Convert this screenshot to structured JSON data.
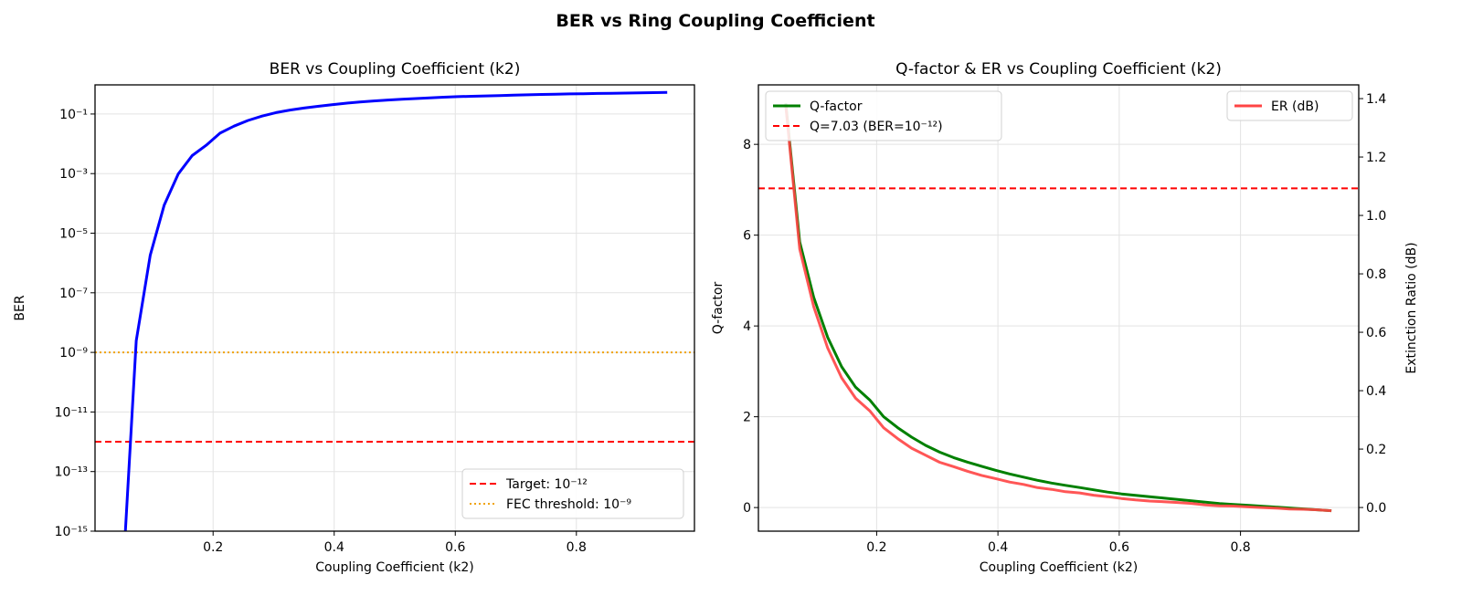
{
  "figure_title": "BER vs Ring Coupling Coefficient",
  "chart_data": [
    {
      "type": "line",
      "title": "BER vs Coupling Coefficient (k2)",
      "xlabel": "Coupling Coefficient (k2)",
      "ylabel": "BER",
      "yscale": "log",
      "xlim": [
        0.005,
        0.995
      ],
      "ylim": [
        1e-15,
        0.95
      ],
      "xticks": [
        0.2,
        0.4,
        0.6,
        0.8
      ],
      "xtick_labels": [
        "0.2",
        "0.4",
        "0.6",
        "0.8"
      ],
      "yticks": [
        0.1,
        0.001,
        1e-05,
        1e-07,
        1e-09,
        1e-11,
        1e-13,
        1e-15
      ],
      "ytick_labels": [
        "10⁻¹",
        "10⁻³",
        "10⁻⁵",
        "10⁻⁷",
        "10⁻⁹",
        "10⁻¹¹",
        "10⁻¹³",
        "10⁻¹⁵"
      ],
      "grid": true,
      "legend_position": "lower-right",
      "x": [
        0.05,
        0.0731,
        0.0962,
        0.1192,
        0.1423,
        0.1654,
        0.1885,
        0.2115,
        0.2346,
        0.2577,
        0.2808,
        0.3038,
        0.3269,
        0.35,
        0.3731,
        0.3962,
        0.4192,
        0.4423,
        0.4654,
        0.4885,
        0.5115,
        0.5346,
        0.5577,
        0.5808,
        0.6038,
        0.6269,
        0.65,
        0.6731,
        0.6962,
        0.7192,
        0.7423,
        0.7654,
        0.7885,
        0.8115,
        0.8346,
        0.8577,
        0.8808,
        0.9038,
        0.9269,
        0.95
      ],
      "series": [
        {
          "values": [
            2.8e-19,
            2.45e-09,
            1.82e-06,
            8.8e-05,
            0.000968,
            0.00402,
            0.0089,
            0.02275,
            0.0392,
            0.0606,
            0.0853,
            0.1112,
            0.1357,
            0.1587,
            0.1814,
            0.2061,
            0.2296,
            0.2514,
            0.2743,
            0.2946,
            0.3121,
            0.33,
            0.3483,
            0.3669,
            0.3821,
            0.3936,
            0.4052,
            0.4168,
            0.4286,
            0.4404,
            0.4522,
            0.4641,
            0.4721,
            0.4801,
            0.488,
            0.496,
            0.504,
            0.512,
            0.5199,
            0.5279
          ],
          "color": "#0000ff"
        }
      ],
      "reference_lines": [
        {
          "name": "Target: 10⁻¹²",
          "y": 1e-12,
          "color": "#ff0000",
          "style": "dashed"
        },
        {
          "name": "FEC threshold: 10⁻⁹",
          "y": 1e-09,
          "color": "#f0a30a",
          "style": "dotted"
        }
      ]
    },
    {
      "type": "line",
      "title": "Q-factor & ER vs Coupling Coefficient (k2)",
      "xlabel": "Coupling Coefficient (k2)",
      "ylabel": "Q-factor",
      "ylabel_color": "#008000",
      "ylabel_right": "Extinction Ratio (dB)",
      "ylabel_right_color": "#ff0000",
      "xlim": [
        0.005,
        0.995
      ],
      "ylim": [
        -0.52,
        9.31
      ],
      "ylim_right": [
        -0.081,
        1.447
      ],
      "xticks": [
        0.2,
        0.4,
        0.6,
        0.8
      ],
      "xtick_labels": [
        "0.2",
        "0.4",
        "0.6",
        "0.8"
      ],
      "yticks": [
        0,
        2,
        4,
        6,
        8
      ],
      "ytick_labels": [
        "0",
        "2",
        "4",
        "6",
        "8"
      ],
      "yticks_right": [
        0.0,
        0.2,
        0.4,
        0.6,
        0.8,
        1.0,
        1.2,
        1.4
      ],
      "ytick_labels_right": [
        "0.0",
        "0.2",
        "0.4",
        "0.6",
        "0.8",
        "1.0",
        "1.2",
        "1.4"
      ],
      "grid": true,
      "legend_position": "upper-left",
      "legend_right_position": "upper-right",
      "x": [
        0.05,
        0.0731,
        0.0962,
        0.1192,
        0.1423,
        0.1654,
        0.1885,
        0.2115,
        0.2346,
        0.2577,
        0.2808,
        0.3038,
        0.3269,
        0.35,
        0.3731,
        0.3962,
        0.4192,
        0.4423,
        0.4654,
        0.4885,
        0.5115,
        0.5346,
        0.5577,
        0.5808,
        0.6038,
        0.6269,
        0.65,
        0.6731,
        0.6962,
        0.7192,
        0.7423,
        0.7654,
        0.7885,
        0.8115,
        0.8346,
        0.8577,
        0.8808,
        0.9038,
        0.9269,
        0.95
      ],
      "series": [
        {
          "name": "Q-factor",
          "axis": "left",
          "color": "#008000",
          "values": [
            8.9,
            5.85,
            4.63,
            3.75,
            3.1,
            2.65,
            2.37,
            2.0,
            1.76,
            1.55,
            1.37,
            1.22,
            1.1,
            1.0,
            0.91,
            0.82,
            0.74,
            0.67,
            0.6,
            0.54,
            0.49,
            0.44,
            0.39,
            0.34,
            0.3,
            0.27,
            0.24,
            0.21,
            0.18,
            0.15,
            0.12,
            0.09,
            0.07,
            0.05,
            0.03,
            0.01,
            -0.01,
            -0.03,
            -0.05,
            -0.07
          ]
        },
        {
          "name": "ER (dB)",
          "axis": "right",
          "color": "#ff4444",
          "values": [
            1.377,
            0.885,
            0.688,
            0.546,
            0.444,
            0.374,
            0.331,
            0.273,
            0.236,
            0.203,
            0.179,
            0.155,
            0.14,
            0.124,
            0.11,
            0.099,
            0.087,
            0.079,
            0.068,
            0.062,
            0.054,
            0.05,
            0.042,
            0.037,
            0.031,
            0.026,
            0.022,
            0.02,
            0.017,
            0.014,
            0.009,
            0.006,
            0.005,
            0.002,
            0.0,
            -0.002,
            -0.005,
            -0.006,
            -0.008,
            -0.011
          ]
        }
      ],
      "reference_lines": [
        {
          "name": "Q=7.03 (BER=10⁻¹²)",
          "y": 7.03,
          "color": "#ff0000",
          "style": "dashed"
        }
      ]
    }
  ]
}
